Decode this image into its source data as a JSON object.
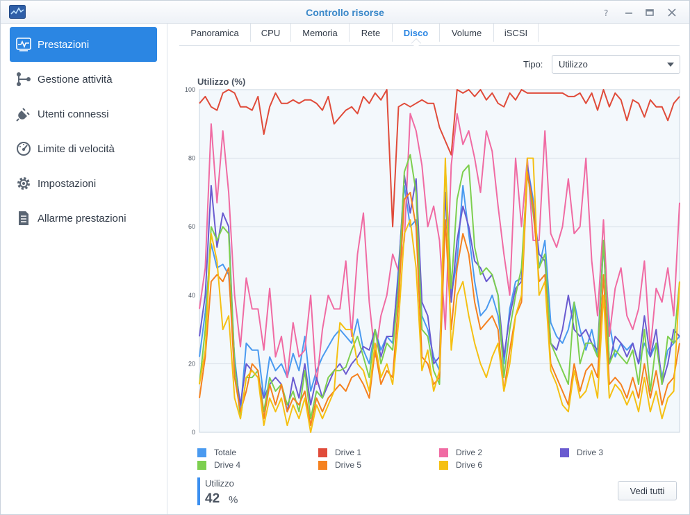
{
  "window": {
    "title": "Controllo risorse"
  },
  "sidebar": {
    "items": [
      {
        "label": "Prestazioni",
        "icon": "performance-icon",
        "active": true
      },
      {
        "label": "Gestione attività",
        "icon": "task-manager-icon",
        "active": false
      },
      {
        "label": "Utenti connessi",
        "icon": "plug-icon",
        "active": false
      },
      {
        "label": "Limite di velocità",
        "icon": "speedometer-icon",
        "active": false
      },
      {
        "label": "Impostazioni",
        "icon": "gear-icon",
        "active": false
      },
      {
        "label": "Allarme prestazioni",
        "icon": "document-list-icon",
        "active": false
      }
    ]
  },
  "tabs": [
    {
      "label": "Panoramica",
      "active": false
    },
    {
      "label": "CPU",
      "active": false
    },
    {
      "label": "Memoria",
      "active": false
    },
    {
      "label": "Rete",
      "active": false
    },
    {
      "label": "Disco",
      "active": true
    },
    {
      "label": "Volume",
      "active": false
    },
    {
      "label": "iSCSI",
      "active": false
    }
  ],
  "filter": {
    "label": "Tipo:",
    "value": "Utilizzo"
  },
  "summary": {
    "label": "Utilizzo",
    "value": "42",
    "unit": "%"
  },
  "buttons": {
    "view_all": "Vedi tutti"
  },
  "colors": {
    "accent": "#2b86e3",
    "plot_bg": "#f3f8fc"
  },
  "chart_data": {
    "type": "line",
    "title": "Utilizzo (%)",
    "ylim": [
      0,
      100
    ],
    "yticks": [
      0,
      20,
      40,
      60,
      80,
      100
    ],
    "grid": true,
    "legend_position": "bottom",
    "series": [
      {
        "name": "Totale",
        "color": "#4a9af0",
        "values": [
          22,
          35,
          55,
          48,
          49,
          46,
          22,
          6,
          26,
          24,
          24,
          10,
          22,
          18,
          20,
          16,
          23,
          18,
          28,
          12,
          18,
          22,
          25,
          28,
          30,
          28,
          26,
          33,
          24,
          20,
          30,
          24,
          28,
          26,
          48,
          72,
          60,
          62,
          34,
          30,
          22,
          18,
          70,
          40,
          50,
          72,
          58,
          44,
          34,
          36,
          40,
          34,
          20,
          36,
          44,
          45,
          78,
          68,
          48,
          56,
          32,
          28,
          26,
          30,
          38,
          30,
          24,
          30,
          22,
          55,
          32,
          22,
          26,
          24,
          26,
          20,
          26,
          22,
          26,
          16,
          24,
          26,
          28
        ]
      },
      {
        "name": "Drive 1",
        "color": "#e04b3a",
        "values": [
          96,
          98,
          95,
          94,
          99,
          100,
          99,
          95,
          95,
          94,
          98,
          87,
          95,
          99,
          96,
          96,
          97,
          96,
          97,
          97,
          96,
          94,
          98,
          90,
          92,
          94,
          95,
          93,
          98,
          96,
          99,
          97,
          100,
          60,
          95,
          96,
          95,
          96,
          97,
          96,
          96,
          89,
          85,
          81,
          100,
          99,
          100,
          98,
          100,
          97,
          99,
          96,
          95,
          99,
          97,
          100,
          99,
          99,
          99,
          99,
          99,
          99,
          99,
          98,
          98,
          99,
          96,
          99,
          94,
          100,
          95,
          99,
          97,
          91,
          97,
          96,
          92,
          97,
          95,
          95,
          91,
          96,
          98
        ]
      },
      {
        "name": "Drive 2",
        "color": "#f06ba3",
        "values": [
          36,
          48,
          90,
          67,
          88,
          70,
          40,
          25,
          45,
          36,
          36,
          24,
          42,
          22,
          28,
          16,
          32,
          22,
          24,
          40,
          14,
          30,
          40,
          36,
          36,
          50,
          28,
          52,
          64,
          38,
          22,
          34,
          40,
          52,
          47,
          56,
          93,
          88,
          78,
          60,
          66,
          56,
          30,
          78,
          93,
          84,
          88,
          80,
          70,
          88,
          82,
          66,
          52,
          40,
          80,
          60,
          80,
          56,
          56,
          88,
          58,
          54,
          60,
          74,
          58,
          60,
          80,
          50,
          34,
          62,
          28,
          42,
          48,
          34,
          30,
          36,
          50,
          24,
          42,
          38,
          48,
          34,
          67
        ]
      },
      {
        "name": "Drive 3",
        "color": "#6a5bd0",
        "values": [
          28,
          40,
          72,
          54,
          64,
          60,
          20,
          8,
          20,
          18,
          16,
          10,
          14,
          16,
          14,
          6,
          16,
          10,
          20,
          8,
          16,
          10,
          14,
          18,
          20,
          17,
          20,
          22,
          25,
          24,
          30,
          22,
          28,
          28,
          46,
          75,
          64,
          74,
          38,
          34,
          20,
          22,
          70,
          38,
          56,
          66,
          60,
          50,
          48,
          44,
          46,
          40,
          22,
          34,
          42,
          44,
          78,
          66,
          52,
          50,
          26,
          24,
          30,
          40,
          30,
          28,
          30,
          26,
          24,
          56,
          20,
          28,
          26,
          22,
          26,
          20,
          34,
          22,
          30,
          14,
          20,
          30,
          28
        ]
      },
      {
        "name": "Drive 4",
        "color": "#7dcf4f",
        "values": [
          14,
          30,
          60,
          56,
          60,
          58,
          20,
          4,
          16,
          16,
          18,
          6,
          16,
          12,
          14,
          8,
          12,
          6,
          18,
          4,
          12,
          10,
          16,
          18,
          18,
          19,
          24,
          28,
          22,
          16,
          30,
          20,
          26,
          24,
          42,
          76,
          81,
          70,
          30,
          28,
          18,
          14,
          78,
          42,
          68,
          76,
          78,
          54,
          46,
          48,
          46,
          40,
          16,
          30,
          40,
          48,
          76,
          64,
          48,
          52,
          26,
          22,
          18,
          14,
          38,
          20,
          26,
          26,
          22,
          56,
          20,
          24,
          22,
          20,
          24,
          14,
          30,
          12,
          26,
          14,
          28,
          26,
          44
        ]
      },
      {
        "name": "Drive 5",
        "color": "#f5811f",
        "values": [
          10,
          22,
          44,
          46,
          44,
          48,
          16,
          6,
          12,
          20,
          18,
          4,
          14,
          8,
          14,
          6,
          10,
          8,
          12,
          2,
          10,
          6,
          10,
          12,
          14,
          12,
          16,
          17,
          14,
          10,
          24,
          14,
          18,
          16,
          38,
          68,
          70,
          60,
          22,
          20,
          14,
          16,
          62,
          30,
          48,
          58,
          52,
          38,
          30,
          32,
          34,
          30,
          12,
          24,
          34,
          38,
          76,
          66,
          44,
          46,
          20,
          16,
          12,
          8,
          20,
          12,
          18,
          20,
          16,
          46,
          14,
          16,
          14,
          10,
          16,
          10,
          20,
          10,
          18,
          8,
          14,
          16,
          26
        ]
      },
      {
        "name": "Drive 6",
        "color": "#f5c013",
        "values": [
          14,
          24,
          58,
          50,
          30,
          34,
          10,
          4,
          16,
          18,
          16,
          2,
          10,
          6,
          10,
          2,
          8,
          4,
          10,
          0,
          8,
          4,
          8,
          12,
          32,
          30,
          30,
          20,
          18,
          12,
          26,
          16,
          20,
          14,
          32,
          58,
          62,
          48,
          18,
          24,
          12,
          18,
          80,
          24,
          40,
          44,
          34,
          26,
          20,
          16,
          22,
          26,
          12,
          20,
          34,
          40,
          80,
          80,
          40,
          44,
          18,
          14,
          8,
          6,
          18,
          10,
          12,
          18,
          10,
          40,
          10,
          14,
          12,
          8,
          12,
          6,
          16,
          6,
          12,
          4,
          10,
          12,
          44
        ]
      }
    ]
  }
}
